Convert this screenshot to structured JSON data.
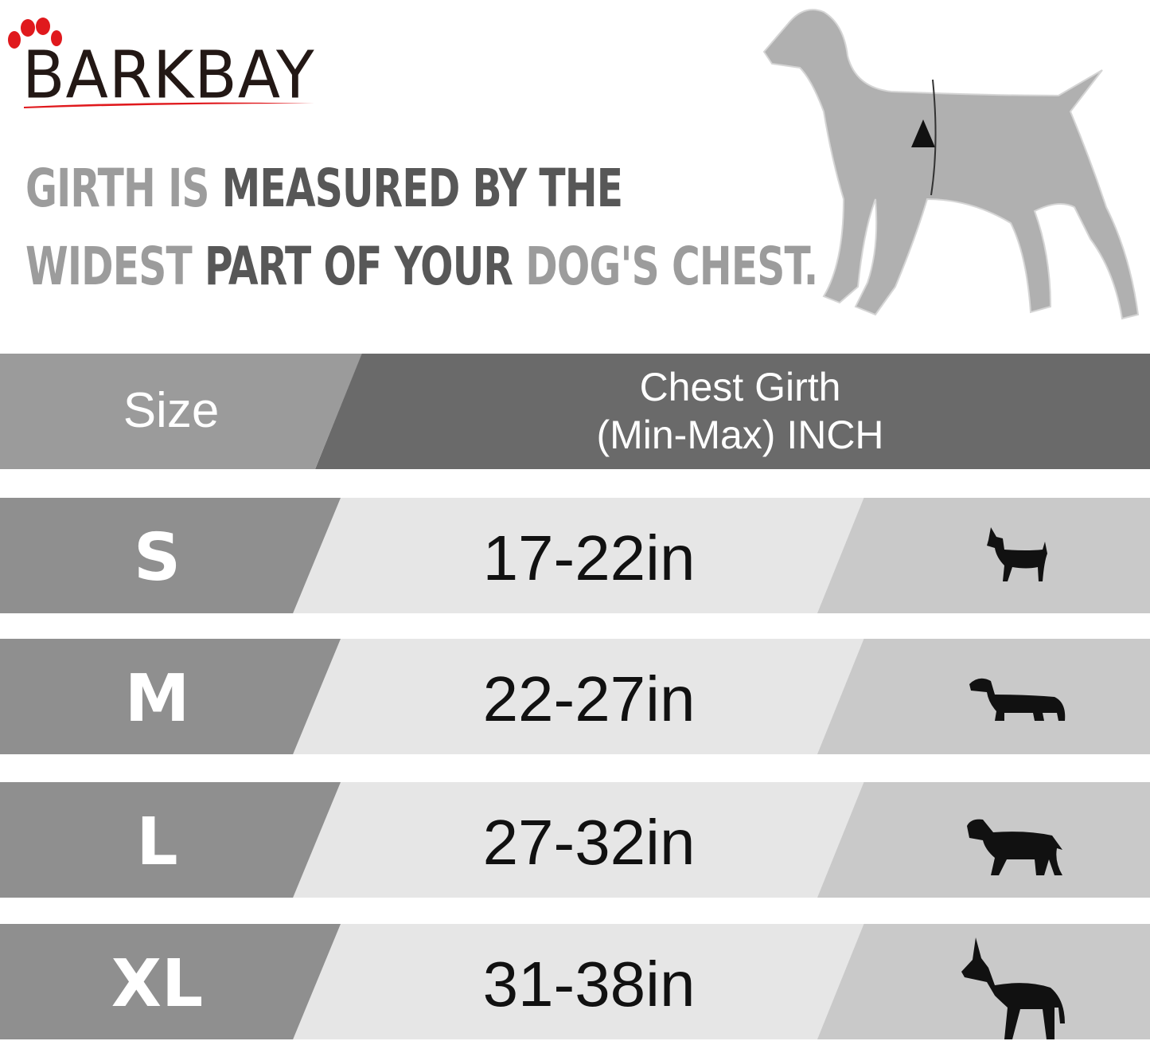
{
  "brand": {
    "logo_text": "BARKBAY",
    "accent": "#e0191d"
  },
  "headline": {
    "line1": [
      {
        "text": "GIRTH IS ",
        "tone": "light"
      },
      {
        "text": "MEASURED BY THE",
        "tone": "dark"
      }
    ],
    "line2": [
      {
        "text": "WIDEST ",
        "tone": "light"
      },
      {
        "text": "PART OF YOUR ",
        "tone": "dark"
      },
      {
        "text": "DOG'S CHEST.",
        "tone": "light"
      }
    ]
  },
  "table": {
    "headers": {
      "size": "Size",
      "girth_line1": "Chest Girth",
      "girth_line2": "(Min-Max)  INCH"
    },
    "rows": [
      {
        "size": "S",
        "girth": "17-22in",
        "icon": "chihuahua-icon"
      },
      {
        "size": "M",
        "girth": "22-27in",
        "icon": "dachshund-icon"
      },
      {
        "size": "L",
        "girth": "27-32in",
        "icon": "labrador-icon"
      },
      {
        "size": "XL",
        "girth": "31-38in",
        "icon": "great-dane-icon"
      }
    ]
  }
}
